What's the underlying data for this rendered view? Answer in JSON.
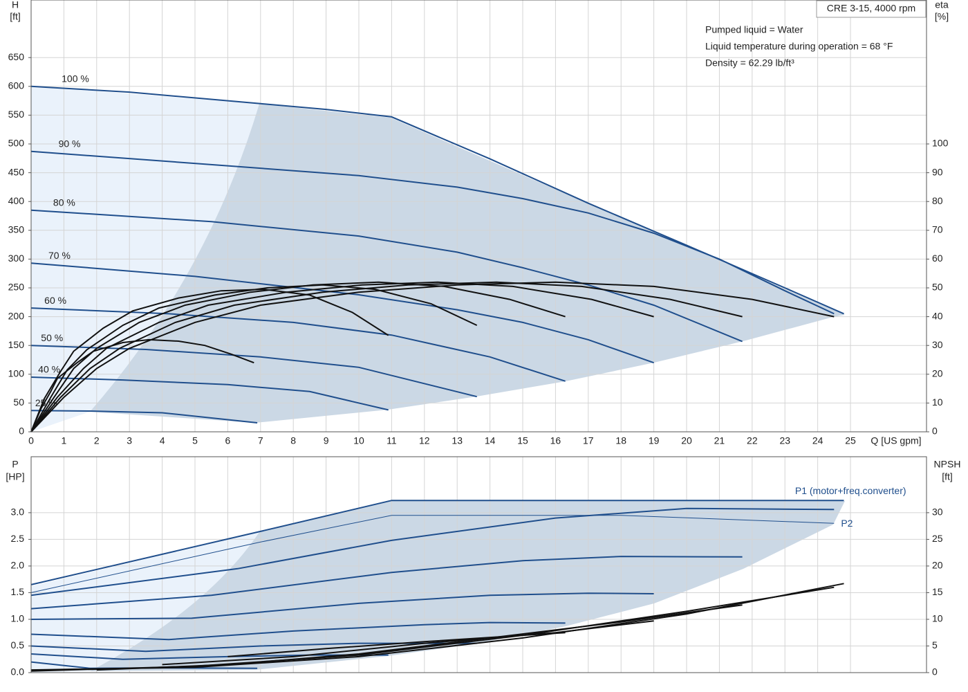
{
  "chart_data": [
    {
      "type": "line",
      "title": "CRE 3-15, 4000 rpm",
      "annotations": [
        "Pumped liquid = Water",
        "Liquid temperature during operation = 68 °F",
        "Density = 62.29 lb/ft³"
      ],
      "x_label": "Q [US gpm]",
      "y_label": "H",
      "y_unit": "[ft]",
      "y2_label": "eta",
      "y2_unit": "[%]",
      "xlim": [
        0,
        27.32
      ],
      "xticks": [
        0,
        1,
        2,
        3,
        4,
        5,
        6,
        7,
        8,
        9,
        10,
        11,
        12,
        13,
        14,
        15,
        16,
        17,
        18,
        19,
        20,
        21,
        22,
        23,
        24,
        25
      ],
      "ylim": [
        0,
        750
      ],
      "yticks": [
        0,
        50,
        100,
        150,
        200,
        250,
        300,
        350,
        400,
        450,
        500,
        550,
        600,
        650
      ],
      "y2lim": [
        0,
        150
      ],
      "y2ticks": [
        0,
        10,
        20,
        30,
        40,
        50,
        60,
        70,
        80,
        90,
        100
      ],
      "grid": true,
      "series": [
        {
          "name": "100 %",
          "color": "#1f4e8c",
          "x": [
            0,
            3,
            7,
            9,
            11,
            14,
            17,
            20,
            23,
            24.8
          ],
          "values": [
            600,
            590,
            570,
            560,
            547,
            474,
            397,
            324,
            250,
            205
          ]
        },
        {
          "name": "90 %",
          "color": "#1f4e8c",
          "x": [
            0,
            6,
            10,
            13,
            15,
            17,
            19,
            21,
            23,
            24.5
          ],
          "values": [
            487,
            462,
            445,
            425,
            405,
            380,
            345,
            300,
            245,
            205
          ]
        },
        {
          "name": "80 %",
          "color": "#1f4e8c",
          "x": [
            0,
            5.5,
            10,
            13,
            15,
            17,
            19,
            21.7
          ],
          "values": [
            385,
            365,
            340,
            312,
            285,
            255,
            220,
            157
          ]
        },
        {
          "name": "70 %",
          "color": "#1f4e8c",
          "x": [
            0,
            5,
            10,
            13,
            15,
            17,
            19
          ],
          "values": [
            293,
            270,
            238,
            212,
            190,
            160,
            120
          ]
        },
        {
          "name": "60 %",
          "color": "#1f4e8c",
          "x": [
            0,
            4.2,
            8,
            11,
            14,
            16.3
          ],
          "values": [
            215,
            205,
            190,
            168,
            130,
            88
          ]
        },
        {
          "name": "50 %",
          "color": "#1f4e8c",
          "x": [
            0,
            3.5,
            7,
            10,
            13.6
          ],
          "values": [
            150,
            143,
            130,
            112,
            61
          ]
        },
        {
          "name": "40 %",
          "color": "#1f4e8c",
          "x": [
            0,
            2.8,
            6,
            8.5,
            10.9
          ],
          "values": [
            95,
            90,
            82,
            70,
            38
          ]
        },
        {
          "name": "25 %",
          "color": "#1f4e8c",
          "x": [
            0,
            1.8,
            4,
            6.9
          ],
          "values": [
            37,
            36,
            33,
            15.6
          ]
        },
        {
          "color": "#111111",
          "axis": "y2",
          "x": [
            0,
            1,
            2,
            3,
            5,
            7,
            10,
            13,
            16,
            19,
            22,
            24.5
          ],
          "values": [
            0,
            12,
            22,
            29,
            38,
            44,
            48.5,
            51,
            52,
            50.5,
            46,
            40
          ]
        },
        {
          "color": "#111111",
          "axis": "y2",
          "x": [
            0,
            0.9,
            1.8,
            2.7,
            4.4,
            6.2,
            8.9,
            11.5,
            14.2,
            16.8,
            19.5,
            21.7
          ],
          "values": [
            0,
            12,
            22,
            29,
            38,
            44,
            48.5,
            51,
            52,
            50.5,
            46,
            40
          ]
        },
        {
          "color": "#111111",
          "axis": "y2",
          "x": [
            0,
            0.8,
            1.6,
            2.3,
            3.9,
            5.4,
            7.8,
            10.1,
            12.4,
            14.7,
            17.1,
            19
          ],
          "values": [
            0,
            12,
            22,
            29,
            38,
            44,
            48.5,
            51,
            52,
            50.5,
            46,
            40
          ]
        },
        {
          "color": "#111111",
          "axis": "y2",
          "x": [
            0,
            0.7,
            1.3,
            2,
            3.3,
            4.7,
            6.7,
            8.6,
            10.6,
            12.6,
            14.6,
            16.3
          ],
          "values": [
            0,
            12,
            22,
            29,
            38,
            44,
            48.5,
            51,
            52,
            50.5,
            46,
            40
          ]
        },
        {
          "color": "#111111",
          "axis": "y2",
          "x": [
            0,
            0.6,
            1.1,
            1.7,
            2.8,
            3.9,
            5.6,
            7.2,
            8.9,
            10.5,
            12.2,
            13.6
          ],
          "values": [
            0,
            12,
            21.5,
            28.5,
            37,
            43,
            47.5,
            50,
            51,
            49.5,
            44.5,
            37
          ]
        },
        {
          "color": "#111111",
          "axis": "y2",
          "x": [
            0,
            0.4,
            0.9,
            1.3,
            2.2,
            3.1,
            4.5,
            5.8,
            7.1,
            8.5,
            9.8,
            10.9
          ],
          "values": [
            0,
            11.5,
            21,
            28,
            36,
            42,
            46.5,
            49,
            49.5,
            47.5,
            41.5,
            33.5
          ]
        },
        {
          "color": "#111111",
          "axis": "y2",
          "x": [
            0,
            0.3,
            0.6,
            0.8,
            1.4,
            1.9,
            2.8,
            3.6,
            4.5,
            5.3,
            6.1,
            6.8
          ],
          "values": [
            0,
            8,
            14,
            18.5,
            24,
            28,
            31,
            32,
            31.5,
            30,
            27,
            24
          ]
        }
      ]
    },
    {
      "type": "line",
      "y_label": "P",
      "y_unit": "[HP]",
      "y2_label": "NPSH",
      "y2_unit": "[ft]",
      "xlim": [
        0,
        27.32
      ],
      "ylim": [
        0,
        4.05
      ],
      "yticks": [
        {
          "value": 0,
          "label": "0.0"
        },
        0.5,
        {
          "value": 1,
          "label": "1.0"
        },
        1.5,
        {
          "value": 2,
          "label": "2.0"
        },
        2.5,
        {
          "value": 3,
          "label": "3.0"
        }
      ],
      "y2lim": [
        0,
        40.5
      ],
      "y2ticks": [
        0,
        5,
        10,
        15,
        20,
        25,
        30
      ],
      "grid": true,
      "series": [
        {
          "name": "P1 (motor+freq.converter)",
          "color": "#1f4e8c",
          "x": [
            0,
            7,
            11,
            18,
            24.8
          ],
          "values": [
            1.65,
            2.65,
            3.23,
            3.23,
            3.23
          ]
        },
        {
          "name": "P2",
          "color": "#1f4e8c",
          "thin": true,
          "x": [
            0,
            7,
            11,
            18,
            24.5
          ],
          "values": [
            1.5,
            2.45,
            2.95,
            2.95,
            2.8
          ]
        },
        {
          "color": "#1f4e8c",
          "x": [
            0,
            6.3,
            11,
            16,
            20,
            24.5
          ],
          "values": [
            1.45,
            1.95,
            2.48,
            2.9,
            3.08,
            3.06
          ]
        },
        {
          "color": "#1f4e8c",
          "x": [
            0,
            5.5,
            11,
            15,
            18,
            21.7
          ],
          "values": [
            1.2,
            1.45,
            1.88,
            2.1,
            2.18,
            2.17
          ]
        },
        {
          "color": "#1f4e8c",
          "x": [
            0,
            4.9,
            10,
            14,
            17,
            19
          ],
          "values": [
            1.0,
            1.02,
            1.3,
            1.45,
            1.49,
            1.48
          ]
        },
        {
          "color": "#1f4e8c",
          "x": [
            0,
            4.2,
            8,
            12,
            14,
            16.3
          ],
          "values": [
            0.72,
            0.62,
            0.78,
            0.9,
            0.94,
            0.93
          ]
        },
        {
          "color": "#1f4e8c",
          "x": [
            0,
            3.5,
            7,
            10,
            13.6
          ],
          "values": [
            0.5,
            0.4,
            0.5,
            0.55,
            0.55
          ]
        },
        {
          "color": "#1f4e8c",
          "x": [
            0,
            2.8,
            6,
            8.5,
            10.9
          ],
          "values": [
            0.35,
            0.25,
            0.3,
            0.33,
            0.33
          ]
        },
        {
          "color": "#1f4e8c",
          "x": [
            0,
            1.8,
            4,
            6.9
          ],
          "values": [
            0.2,
            0.08,
            0.09,
            0.08
          ]
        },
        {
          "color": "#111111",
          "axis": "y2",
          "x": [
            0,
            5,
            10,
            15,
            20,
            24.8
          ],
          "values": [
            0.5,
            1,
            3,
            6.5,
            11,
            16.7
          ]
        },
        {
          "color": "#111111",
          "axis": "y2",
          "x": [
            0,
            5,
            10,
            15,
            20,
            24.5
          ],
          "values": [
            0.3,
            1.2,
            3.3,
            7,
            11.5,
            16
          ]
        },
        {
          "color": "#111111",
          "axis": "y2",
          "x": [
            2,
            6,
            10,
            14,
            18,
            21.7
          ],
          "values": [
            0.5,
            1.5,
            3.5,
            6.5,
            9.5,
            12.7
          ]
        },
        {
          "color": "#111111",
          "axis": "y2",
          "x": [
            4,
            8,
            12,
            16,
            19
          ],
          "values": [
            1.5,
            3,
            5.5,
            7.5,
            9.7
          ]
        },
        {
          "color": "#111111",
          "axis": "y2",
          "x": [
            6,
            9,
            12,
            14.5,
            16.3
          ],
          "values": [
            3,
            4.5,
            5.8,
            6.8,
            7.5
          ]
        }
      ]
    }
  ]
}
